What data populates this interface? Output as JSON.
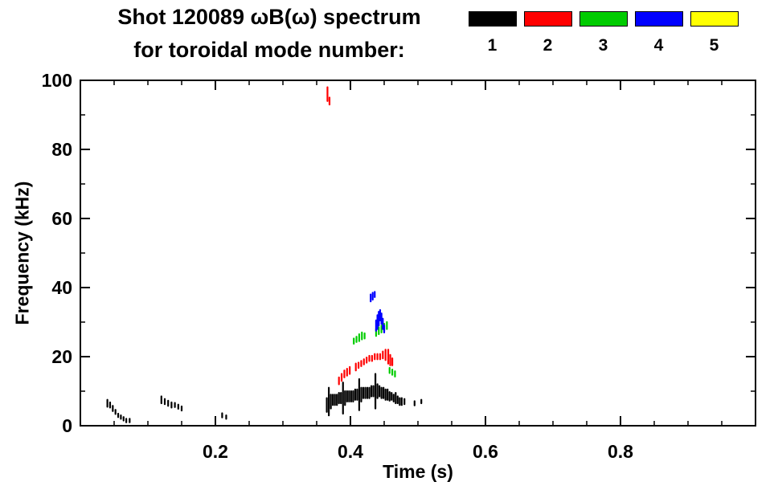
{
  "title": {
    "line1": "Shot 120089 ωB(ω) spectrum",
    "line2": "for toroidal mode number:"
  },
  "legend": {
    "entries": [
      {
        "label": "1",
        "color": "#000000"
      },
      {
        "label": "2",
        "color": "#ff0000"
      },
      {
        "label": "3",
        "color": "#00cc00"
      },
      {
        "label": "4",
        "color": "#0000ff"
      },
      {
        "label": "5",
        "color": "#ffff00"
      }
    ]
  },
  "chart_data": {
    "type": "scatter",
    "title": "Shot 120089 ωB(ω) spectrum for toroidal mode number",
    "xlabel": "Time (s)",
    "ylabel": "Frequency (kHz)",
    "xlim": [
      0,
      1.0
    ],
    "ylim": [
      0,
      100
    ],
    "xticks": [
      0.2,
      0.4,
      0.6,
      0.8
    ],
    "xtick_labels": [
      "0.2",
      "0.4",
      "0.6",
      "0.8"
    ],
    "yticks": [
      0,
      20,
      40,
      60,
      80,
      100
    ],
    "ytick_labels": [
      "0",
      "20",
      "40",
      "60",
      "80",
      "100"
    ],
    "grid": false,
    "legend_position": "top-right",
    "point_format": "[time_s, freq_kHz, vertical_extent_kHz]",
    "series": [
      {
        "name": "1",
        "color": "#000000",
        "points": [
          [
            0.04,
            6.5,
            2
          ],
          [
            0.044,
            6,
            1.5
          ],
          [
            0.048,
            5,
            1.5
          ],
          [
            0.052,
            4,
            1.2
          ],
          [
            0.056,
            3,
            1
          ],
          [
            0.06,
            2.5,
            1
          ],
          [
            0.064,
            2,
            1
          ],
          [
            0.068,
            1.5,
            1
          ],
          [
            0.073,
            1.5,
            1
          ],
          [
            0.12,
            7.5,
            2
          ],
          [
            0.125,
            7,
            1.5
          ],
          [
            0.13,
            6.5,
            1.5
          ],
          [
            0.135,
            6,
            1.5
          ],
          [
            0.14,
            6,
            1.2
          ],
          [
            0.145,
            5.5,
            1.2
          ],
          [
            0.15,
            5,
            1.2
          ],
          [
            0.21,
            3,
            1.2
          ],
          [
            0.216,
            2.5,
            1
          ],
          [
            0.365,
            6,
            4
          ],
          [
            0.368,
            7,
            8
          ],
          [
            0.371,
            7,
            4
          ],
          [
            0.374,
            7.5,
            3
          ],
          [
            0.377,
            7.5,
            3
          ],
          [
            0.38,
            7.5,
            3
          ],
          [
            0.383,
            8,
            3
          ],
          [
            0.386,
            8,
            3
          ],
          [
            0.389,
            8,
            9
          ],
          [
            0.392,
            8,
            4
          ],
          [
            0.395,
            8.5,
            3
          ],
          [
            0.398,
            8.5,
            3
          ],
          [
            0.401,
            8.5,
            3
          ],
          [
            0.404,
            8.5,
            3
          ],
          [
            0.407,
            9,
            3
          ],
          [
            0.41,
            9,
            3
          ],
          [
            0.413,
            9,
            9
          ],
          [
            0.416,
            9,
            4
          ],
          [
            0.419,
            9.5,
            3
          ],
          [
            0.422,
            9.5,
            3
          ],
          [
            0.425,
            9.5,
            3
          ],
          [
            0.428,
            9.5,
            3
          ],
          [
            0.431,
            10,
            3
          ],
          [
            0.434,
            10,
            3
          ],
          [
            0.437,
            10,
            10
          ],
          [
            0.44,
            10,
            4
          ],
          [
            0.443,
            10,
            3
          ],
          [
            0.446,
            9.5,
            3
          ],
          [
            0.449,
            9.5,
            3
          ],
          [
            0.452,
            9,
            3
          ],
          [
            0.455,
            9,
            3
          ],
          [
            0.458,
            8.5,
            2.5
          ],
          [
            0.461,
            8.5,
            2
          ],
          [
            0.464,
            8,
            2
          ],
          [
            0.467,
            8,
            3
          ],
          [
            0.47,
            7.5,
            2
          ],
          [
            0.473,
            7,
            2
          ],
          [
            0.476,
            7,
            2
          ],
          [
            0.48,
            7,
            1.5
          ],
          [
            0.495,
            6.5,
            1.2
          ],
          [
            0.505,
            7,
            1
          ]
        ]
      },
      {
        "name": "2",
        "color": "#ff0000",
        "points": [
          [
            0.366,
            96,
            4
          ],
          [
            0.369,
            94,
            2
          ],
          [
            0.383,
            13,
            2
          ],
          [
            0.387,
            14,
            2
          ],
          [
            0.391,
            15,
            2
          ],
          [
            0.395,
            15.5,
            2
          ],
          [
            0.399,
            16,
            2
          ],
          [
            0.408,
            17,
            2
          ],
          [
            0.412,
            17.5,
            1.5
          ],
          [
            0.416,
            18,
            1.5
          ],
          [
            0.42,
            18.5,
            1.5
          ],
          [
            0.424,
            19,
            1.5
          ],
          [
            0.428,
            19.5,
            1.5
          ],
          [
            0.432,
            19.5,
            1.5
          ],
          [
            0.436,
            20,
            1.5
          ],
          [
            0.44,
            20,
            1.5
          ],
          [
            0.444,
            20,
            1.5
          ],
          [
            0.448,
            20.5,
            2
          ],
          [
            0.452,
            20.5,
            3
          ],
          [
            0.456,
            20,
            4
          ],
          [
            0.459,
            19,
            3
          ],
          [
            0.462,
            18.5,
            2
          ]
        ]
      },
      {
        "name": "3",
        "color": "#00cc00",
        "points": [
          [
            0.405,
            24.5,
            1.5
          ],
          [
            0.409,
            25,
            1.5
          ],
          [
            0.413,
            25.5,
            2
          ],
          [
            0.417,
            26,
            2
          ],
          [
            0.421,
            26,
            1.5
          ],
          [
            0.438,
            27,
            2
          ],
          [
            0.442,
            27.5,
            2
          ],
          [
            0.446,
            28,
            2
          ],
          [
            0.45,
            28.5,
            2
          ],
          [
            0.454,
            29,
            2
          ],
          [
            0.458,
            16,
            1.5
          ],
          [
            0.462,
            15.5,
            1.5
          ],
          [
            0.466,
            15,
            1.5
          ]
        ]
      },
      {
        "name": "4",
        "color": "#0000ff",
        "points": [
          [
            0.43,
            37,
            2
          ],
          [
            0.433,
            37.5,
            2
          ],
          [
            0.436,
            38,
            1.5
          ],
          [
            0.438,
            29,
            3
          ],
          [
            0.44,
            30,
            4
          ],
          [
            0.442,
            31,
            4
          ],
          [
            0.444,
            32,
            3
          ],
          [
            0.446,
            31,
            3
          ],
          [
            0.448,
            29.5,
            3
          ],
          [
            0.45,
            28,
            2
          ]
        ]
      },
      {
        "name": "5",
        "color": "#ffff00",
        "points": []
      }
    ]
  }
}
